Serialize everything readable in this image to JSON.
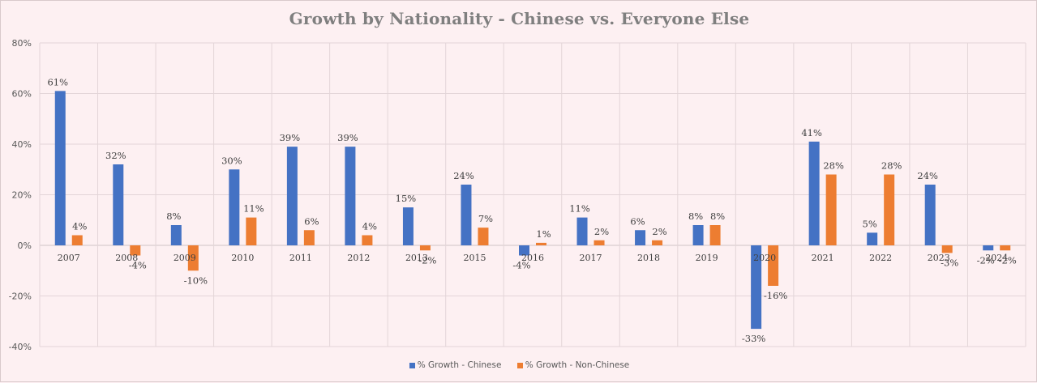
{
  "chart_data": {
    "type": "bar",
    "title": "Growth by Nationality - Chinese vs. Everyone Else",
    "categories": [
      "2007",
      "2008",
      "2009",
      "2010",
      "2011",
      "2012",
      "2013",
      "2015",
      "2016",
      "2017",
      "2018",
      "2019",
      "2020",
      "2021",
      "2022",
      "2023",
      "2024"
    ],
    "series": [
      {
        "name": "% Growth - Chinese",
        "color": "#4472c4",
        "values": [
          61,
          32,
          8,
          30,
          39,
          39,
          15,
          24,
          -4,
          11,
          6,
          8,
          -33,
          41,
          5,
          24,
          -2
        ],
        "labels": [
          "61%",
          "32%",
          "8%",
          "30%",
          "39%",
          "39%",
          "15%",
          "24%",
          "-4%",
          "11%",
          "6%",
          "8%",
          "-33%",
          "41%",
          "5%",
          "24%",
          "-2%"
        ]
      },
      {
        "name": "% Growth - Non-Chinese",
        "color": "#ed7d31",
        "values": [
          4,
          -4,
          -10,
          11,
          6,
          4,
          -2,
          7,
          1,
          2,
          2,
          8,
          -16,
          28,
          28,
          -3,
          -2
        ],
        "labels": [
          "4%",
          "-4%",
          "-10%",
          "11%",
          "6%",
          "4%",
          "-2%",
          "7%",
          "1%",
          "2%",
          "2%",
          "8%",
          "-16%",
          "28%",
          "28%",
          "-3%",
          "-2%"
        ]
      }
    ],
    "ylim": [
      -40,
      80
    ],
    "yticks": [
      "-40%",
      "-20%",
      "0%",
      "20%",
      "40%",
      "60%",
      "80%"
    ],
    "grid": true,
    "legend_position": "bottom"
  }
}
